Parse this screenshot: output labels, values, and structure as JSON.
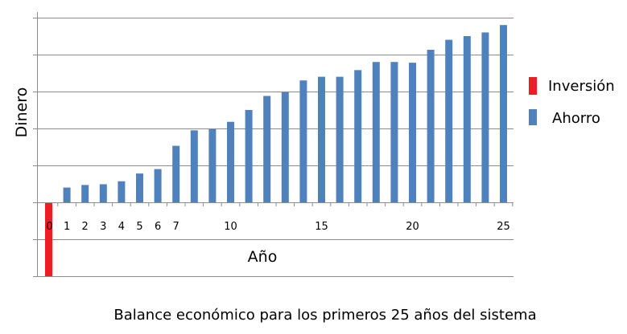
{
  "chart_data": {
    "type": "bar",
    "title": "Balance económico para los primeros 25 años del sistema",
    "xlabel": "Año",
    "ylabel": "Dinero",
    "x_ticks": [
      "0",
      "1",
      "2",
      "3",
      "4",
      "5",
      "6",
      "7",
      "10",
      "15",
      "20",
      "25"
    ],
    "ylim": [
      -2,
      5
    ],
    "grid": true,
    "legend_position": "right",
    "series": [
      {
        "name": "Inversión",
        "color": "#ee1c25",
        "points": [
          {
            "x": 0,
            "y": -2
          }
        ]
      },
      {
        "name": "Ahorro",
        "color": "#4f81bd",
        "points": [
          {
            "x": 1,
            "y": 0.4
          },
          {
            "x": 2,
            "y": 0.47
          },
          {
            "x": 3,
            "y": 0.49
          },
          {
            "x": 4,
            "y": 0.57
          },
          {
            "x": 5,
            "y": 0.78
          },
          {
            "x": 6,
            "y": 0.9
          },
          {
            "x": 7,
            "y": 1.53
          },
          {
            "x": 8,
            "y": 1.95
          },
          {
            "x": 9,
            "y": 1.98
          },
          {
            "x": 10,
            "y": 2.18
          },
          {
            "x": 11,
            "y": 2.5
          },
          {
            "x": 12,
            "y": 2.88
          },
          {
            "x": 13,
            "y": 2.98
          },
          {
            "x": 14,
            "y": 3.3
          },
          {
            "x": 15,
            "y": 3.4
          },
          {
            "x": 16,
            "y": 3.4
          },
          {
            "x": 17,
            "y": 3.58
          },
          {
            "x": 18,
            "y": 3.8
          },
          {
            "x": 19,
            "y": 3.8
          },
          {
            "x": 20,
            "y": 3.78
          },
          {
            "x": 21,
            "y": 4.13
          },
          {
            "x": 22,
            "y": 4.4
          },
          {
            "x": 23,
            "y": 4.5
          },
          {
            "x": 24,
            "y": 4.6
          },
          {
            "x": 25,
            "y": 4.8
          }
        ]
      }
    ]
  }
}
